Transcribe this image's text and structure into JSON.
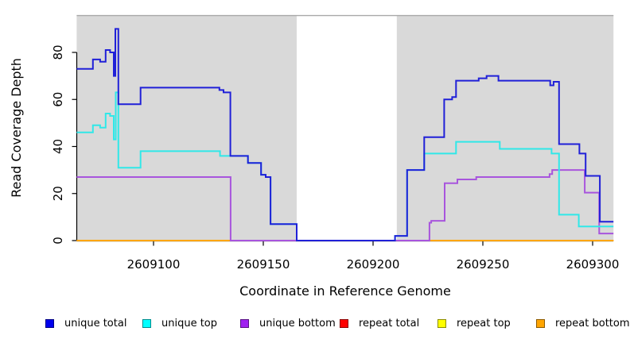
{
  "figure": {
    "xlabel": "Coordinate in Reference Genome",
    "ylabel": "Read Coverage Depth"
  },
  "chart_data": {
    "type": "line",
    "subtype": "step-coverage",
    "xlabel": "Coordinate in Reference Genome",
    "ylabel": "Read Coverage Depth",
    "xlim": [
      2609065,
      2609309.5
    ],
    "ylim": [
      0,
      96
    ],
    "x_ticks": [
      2609100,
      2609150,
      2609200,
      2609250,
      2609300
    ],
    "y_ticks": [
      0,
      20,
      40,
      60,
      80
    ],
    "grid": false,
    "background_color": "#d9d9d9",
    "background_top_border_color": "#a8a8a8",
    "background_regions": [
      [
        2609065,
        2609165.2
      ],
      [
        2609210.8,
        2609309.5
      ]
    ],
    "gap_region": [
      2609165.2,
      2609210.8
    ],
    "x_end": 2609309.5,
    "series": [
      {
        "name": "unique total",
        "color": "#2020d8",
        "swatch": "#0000ee",
        "steps": [
          [
            2609065,
            73
          ],
          [
            2609072.4,
            77
          ],
          [
            2609075.7,
            76
          ],
          [
            2609078.2,
            81
          ],
          [
            2609080.2,
            80
          ],
          [
            2609081.9,
            70
          ],
          [
            2609082.6,
            90
          ],
          [
            2609084,
            58
          ],
          [
            2609094.1,
            65
          ],
          [
            2609130,
            64
          ],
          [
            2609131.9,
            63
          ],
          [
            2609135,
            36
          ],
          [
            2609143,
            33
          ],
          [
            2609149,
            28
          ],
          [
            2609151.1,
            27
          ],
          [
            2609153.3,
            7
          ],
          [
            2609165.2,
            0
          ],
          [
            2609210,
            2
          ],
          [
            2609215.5,
            30
          ],
          [
            2609223.3,
            44
          ],
          [
            2609232.4,
            60
          ],
          [
            2609236,
            61
          ],
          [
            2609237.8,
            68
          ],
          [
            2609248.1,
            69
          ],
          [
            2609251.7,
            70
          ],
          [
            2609257.1,
            68
          ],
          [
            2609280.7,
            66
          ],
          [
            2609282.2,
            67.5
          ],
          [
            2609284.7,
            41
          ],
          [
            2609294,
            37
          ],
          [
            2609296.8,
            27.5
          ],
          [
            2609303.3,
            8
          ]
        ]
      },
      {
        "name": "unique top",
        "color": "#30e8e8",
        "swatch": "#00ffff",
        "steps": [
          [
            2609065,
            46
          ],
          [
            2609072.4,
            49
          ],
          [
            2609075.7,
            48
          ],
          [
            2609078.2,
            54
          ],
          [
            2609080.2,
            53
          ],
          [
            2609081.9,
            43
          ],
          [
            2609082.8,
            63
          ],
          [
            2609084,
            31
          ],
          [
            2609094.1,
            38
          ],
          [
            2609130.3,
            36
          ],
          [
            2609143,
            33
          ],
          [
            2609149,
            28
          ],
          [
            2609151.1,
            27
          ],
          [
            2609153.3,
            7
          ],
          [
            2609165.2,
            0
          ],
          [
            2609210,
            2
          ],
          [
            2609215.5,
            30
          ],
          [
            2609223.3,
            37
          ],
          [
            2609237.8,
            42
          ],
          [
            2609257.7,
            39
          ],
          [
            2609281.3,
            37
          ],
          [
            2609284.7,
            11
          ],
          [
            2609293.7,
            6
          ]
        ]
      },
      {
        "name": "unique bottom",
        "color": "#a855dd",
        "swatch": "#a020f0",
        "steps": [
          [
            2609065,
            27
          ],
          [
            2609135.1,
            0
          ],
          [
            2609225.7,
            7.6
          ],
          [
            2609226.5,
            8.4
          ],
          [
            2609232.6,
            24.4
          ],
          [
            2609238.4,
            26
          ],
          [
            2609247,
            27
          ],
          [
            2609280.4,
            28.3
          ],
          [
            2609281.6,
            30
          ],
          [
            2609296.4,
            20.4
          ],
          [
            2609303,
            3
          ]
        ]
      },
      {
        "name": "repeat total",
        "color": "#ff0000",
        "swatch": "#ff0000",
        "steps": [
          [
            2609065,
            0
          ]
        ]
      },
      {
        "name": "repeat top",
        "color": "#ffff00",
        "swatch": "#ffff00",
        "steps": [
          [
            2609065,
            0
          ]
        ]
      },
      {
        "name": "repeat bottom",
        "color": "#ffa500",
        "swatch": "#ffa500",
        "steps": [
          [
            2609065,
            0
          ]
        ]
      }
    ],
    "legend": [
      {
        "label": "unique total"
      },
      {
        "label": "unique top"
      },
      {
        "label": "unique bottom"
      },
      {
        "label": "repeat total"
      },
      {
        "label": "repeat top"
      },
      {
        "label": "repeat bottom"
      }
    ],
    "legend_position": "bottom"
  }
}
